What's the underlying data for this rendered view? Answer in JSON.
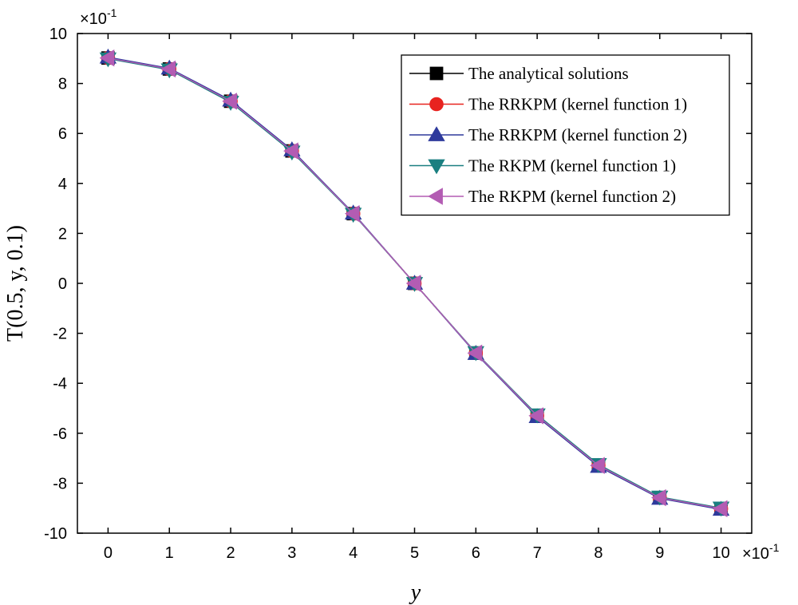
{
  "chart_data": {
    "type": "line",
    "xlabel": "y",
    "ylabel": "T(0.5, y, 0.1)",
    "x_multiplier": "×10",
    "x_multiplier_exp": "-1",
    "y_multiplier": "×10",
    "y_multiplier_exp": "-1",
    "xlim": [
      -0.5,
      10.5
    ],
    "ylim": [
      -10,
      10
    ],
    "xticks": [
      0,
      1,
      2,
      3,
      4,
      5,
      6,
      7,
      8,
      9,
      10
    ],
    "yticks": [
      -10,
      -8,
      -6,
      -4,
      -2,
      0,
      2,
      4,
      6,
      8,
      10
    ],
    "x": [
      0,
      1,
      2,
      3,
      4,
      5,
      6,
      7,
      8,
      9,
      10
    ],
    "grid": false,
    "legend_position": "top-right",
    "series": [
      {
        "name": "The analytical solutions",
        "color": "#000000",
        "marker": "square",
        "values": [
          9.02,
          8.58,
          7.29,
          5.3,
          2.79,
          0.0,
          -2.79,
          -5.3,
          -7.29,
          -8.58,
          -9.02
        ]
      },
      {
        "name": "The RRKPM (kernel function 1)",
        "color": "#e8231f",
        "marker": "circle",
        "values": [
          9.02,
          8.58,
          7.29,
          5.3,
          2.79,
          0.0,
          -2.79,
          -5.3,
          -7.29,
          -8.58,
          -9.02
        ]
      },
      {
        "name": "The RRKPM (kernel function 2)",
        "color": "#2e3a9c",
        "marker": "triangle-up",
        "values": [
          9.05,
          8.61,
          7.33,
          5.34,
          2.81,
          0.0,
          -2.81,
          -5.34,
          -7.33,
          -8.61,
          -9.05
        ]
      },
      {
        "name": "The RKPM (kernel function 1)",
        "color": "#1a7f80",
        "marker": "triangle-down",
        "values": [
          8.99,
          8.55,
          7.25,
          5.26,
          2.77,
          0.0,
          -2.77,
          -5.26,
          -7.25,
          -8.55,
          -8.99
        ]
      },
      {
        "name": "The RKPM (kernel function 2)",
        "color": "#b35cb3",
        "marker": "triangle-left",
        "values": [
          9.02,
          8.58,
          7.29,
          5.3,
          2.79,
          0.0,
          -2.79,
          -5.3,
          -7.29,
          -8.58,
          -9.02
        ]
      }
    ]
  }
}
